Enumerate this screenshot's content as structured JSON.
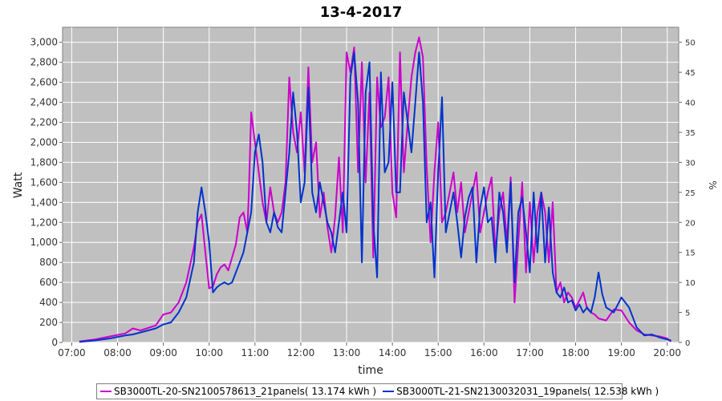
{
  "chart_data": {
    "type": "line",
    "title": "13-4-2017",
    "xlabel": "time",
    "ylabel": "Watt",
    "y2label": "%",
    "x_ticks": [
      "07:00",
      "08:00",
      "09:00",
      "10:00",
      "11:00",
      "12:00",
      "13:00",
      "14:00",
      "15:00",
      "16:00",
      "17:00",
      "18:00",
      "19:00",
      "20:00"
    ],
    "y_ticks": [
      "0",
      "200",
      "400",
      "600",
      "800",
      "1,000",
      "1,200",
      "1,400",
      "1,600",
      "1,800",
      "2,000",
      "2,200",
      "2,400",
      "2,600",
      "2,800",
      "3,000"
    ],
    "y2_ticks": [
      "0",
      "5",
      "10",
      "15",
      "20",
      "25",
      "30",
      "35",
      "40",
      "45",
      "50"
    ],
    "xlim_hours": [
      6.8,
      20.25
    ],
    "ylim": [
      0,
      3150
    ],
    "y2lim": [
      0,
      52.5
    ],
    "grid": true,
    "legend_position": "bottom",
    "series": [
      {
        "name": "SB3000TL-20-SN2100578613_21panels( 13.174 kWh )",
        "color": "#cc00cc",
        "points": [
          [
            "07:10",
            10
          ],
          [
            "07:30",
            30
          ],
          [
            "07:50",
            60
          ],
          [
            "08:10",
            90
          ],
          [
            "08:20",
            140
          ],
          [
            "08:30",
            120
          ],
          [
            "08:50",
            170
          ],
          [
            "09:00",
            280
          ],
          [
            "09:10",
            300
          ],
          [
            "09:20",
            400
          ],
          [
            "09:30",
            600
          ],
          [
            "09:40",
            950
          ],
          [
            "09:45",
            1200
          ],
          [
            "09:50",
            1280
          ],
          [
            "09:55",
            900
          ],
          [
            "10:00",
            540
          ],
          [
            "10:05",
            560
          ],
          [
            "10:10",
            680
          ],
          [
            "10:15",
            750
          ],
          [
            "10:20",
            780
          ],
          [
            "10:25",
            720
          ],
          [
            "10:30",
            850
          ],
          [
            "10:35",
            980
          ],
          [
            "10:40",
            1250
          ],
          [
            "10:45",
            1300
          ],
          [
            "10:50",
            1100
          ],
          [
            "10:52",
            1500
          ],
          [
            "10:55",
            2300
          ],
          [
            "11:00",
            2000
          ],
          [
            "11:05",
            1700
          ],
          [
            "11:10",
            1400
          ],
          [
            "11:15",
            1200
          ],
          [
            "11:20",
            1550
          ],
          [
            "11:25",
            1300
          ],
          [
            "11:30",
            1200
          ],
          [
            "11:35",
            1300
          ],
          [
            "11:40",
            1600
          ],
          [
            "11:45",
            2650
          ],
          [
            "11:50",
            2100
          ],
          [
            "11:55",
            1900
          ],
          [
            "12:00",
            2300
          ],
          [
            "12:05",
            1700
          ],
          [
            "12:10",
            2750
          ],
          [
            "12:15",
            1800
          ],
          [
            "12:20",
            2000
          ],
          [
            "12:25",
            1250
          ],
          [
            "12:30",
            1500
          ],
          [
            "12:35",
            1150
          ],
          [
            "12:40",
            900
          ],
          [
            "12:45",
            1250
          ],
          [
            "12:50",
            1850
          ],
          [
            "12:55",
            1100
          ],
          [
            "13:00",
            2900
          ],
          [
            "13:05",
            2700
          ],
          [
            "13:10",
            2950
          ],
          [
            "13:15",
            1700
          ],
          [
            "13:20",
            2800
          ],
          [
            "13:25",
            1600
          ],
          [
            "13:30",
            2500
          ],
          [
            "13:35",
            850
          ],
          [
            "13:40",
            2650
          ],
          [
            "13:45",
            2150
          ],
          [
            "13:50",
            2250
          ],
          [
            "13:55",
            2650
          ],
          [
            "14:00",
            1500
          ],
          [
            "14:05",
            1250
          ],
          [
            "14:10",
            2900
          ],
          [
            "14:15",
            1700
          ],
          [
            "14:20",
            2200
          ],
          [
            "14:25",
            2650
          ],
          [
            "14:30",
            2900
          ],
          [
            "14:35",
            3050
          ],
          [
            "14:40",
            2850
          ],
          [
            "14:45",
            1750
          ],
          [
            "14:50",
            1000
          ],
          [
            "14:55",
            1700
          ],
          [
            "15:00",
            2200
          ],
          [
            "15:05",
            1200
          ],
          [
            "15:10",
            1300
          ],
          [
            "15:15",
            1500
          ],
          [
            "15:20",
            1700
          ],
          [
            "15:25",
            1300
          ],
          [
            "15:30",
            1600
          ],
          [
            "15:35",
            1100
          ],
          [
            "15:40",
            1300
          ],
          [
            "15:45",
            1500
          ],
          [
            "15:50",
            1700
          ],
          [
            "15:55",
            1100
          ],
          [
            "16:00",
            1300
          ],
          [
            "16:05",
            1500
          ],
          [
            "16:10",
            1650
          ],
          [
            "16:15",
            900
          ],
          [
            "16:20",
            1300
          ],
          [
            "16:25",
            1500
          ],
          [
            "16:30",
            1000
          ],
          [
            "16:35",
            1650
          ],
          [
            "16:40",
            400
          ],
          [
            "16:45",
            1000
          ],
          [
            "16:50",
            1600
          ],
          [
            "16:55",
            700
          ],
          [
            "17:00",
            1400
          ],
          [
            "17:05",
            800
          ],
          [
            "17:10",
            1300
          ],
          [
            "17:15",
            1500
          ],
          [
            "17:20",
            1300
          ],
          [
            "17:25",
            800
          ],
          [
            "17:30",
            1400
          ],
          [
            "17:35",
            500
          ],
          [
            "17:40",
            600
          ],
          [
            "17:45",
            400
          ],
          [
            "17:50",
            500
          ],
          [
            "17:55",
            450
          ],
          [
            "18:00",
            350
          ],
          [
            "18:05",
            420
          ],
          [
            "18:10",
            500
          ],
          [
            "18:15",
            340
          ],
          [
            "18:20",
            300
          ],
          [
            "18:25",
            280
          ],
          [
            "18:30",
            240
          ],
          [
            "18:40",
            220
          ],
          [
            "18:50",
            330
          ],
          [
            "19:00",
            320
          ],
          [
            "19:10",
            200
          ],
          [
            "19:20",
            120
          ],
          [
            "19:30",
            80
          ],
          [
            "19:40",
            70
          ],
          [
            "19:50",
            60
          ],
          [
            "20:00",
            40
          ],
          [
            "20:05",
            10
          ]
        ]
      },
      {
        "name": "SB3000TL-21-SN2130032031_19panels( 12.538 kWh )",
        "color": "#0033cc",
        "points": [
          [
            "07:10",
            5
          ],
          [
            "07:30",
            20
          ],
          [
            "07:50",
            40
          ],
          [
            "08:10",
            70
          ],
          [
            "08:20",
            80
          ],
          [
            "08:30",
            100
          ],
          [
            "08:50",
            140
          ],
          [
            "09:00",
            180
          ],
          [
            "09:10",
            200
          ],
          [
            "09:20",
            300
          ],
          [
            "09:30",
            450
          ],
          [
            "09:40",
            800
          ],
          [
            "09:45",
            1300
          ],
          [
            "09:50",
            1550
          ],
          [
            "09:55",
            1300
          ],
          [
            "10:00",
            1000
          ],
          [
            "10:05",
            500
          ],
          [
            "10:10",
            550
          ],
          [
            "10:15",
            580
          ],
          [
            "10:20",
            600
          ],
          [
            "10:25",
            580
          ],
          [
            "10:30",
            600
          ],
          [
            "10:35",
            700
          ],
          [
            "10:40",
            800
          ],
          [
            "10:45",
            900
          ],
          [
            "10:50",
            1100
          ],
          [
            "10:55",
            1300
          ],
          [
            "11:00",
            1900
          ],
          [
            "11:05",
            2080
          ],
          [
            "11:10",
            1800
          ],
          [
            "11:15",
            1200
          ],
          [
            "11:20",
            1100
          ],
          [
            "11:25",
            1300
          ],
          [
            "11:30",
            1150
          ],
          [
            "11:35",
            1100
          ],
          [
            "11:40",
            1500
          ],
          [
            "11:45",
            1900
          ],
          [
            "11:50",
            2500
          ],
          [
            "11:55",
            2100
          ],
          [
            "12:00",
            1400
          ],
          [
            "12:05",
            1600
          ],
          [
            "12:10",
            2550
          ],
          [
            "12:15",
            1500
          ],
          [
            "12:20",
            1300
          ],
          [
            "12:25",
            1600
          ],
          [
            "12:30",
            1400
          ],
          [
            "12:35",
            1200
          ],
          [
            "12:40",
            1100
          ],
          [
            "12:45",
            900
          ],
          [
            "12:50",
            1200
          ],
          [
            "12:55",
            1500
          ],
          [
            "13:00",
            1100
          ],
          [
            "13:05",
            2650
          ],
          [
            "13:10",
            2900
          ],
          [
            "13:15",
            2400
          ],
          [
            "13:20",
            800
          ],
          [
            "13:25",
            2500
          ],
          [
            "13:30",
            2800
          ],
          [
            "13:35",
            1200
          ],
          [
            "13:40",
            650
          ],
          [
            "13:45",
            2700
          ],
          [
            "13:50",
            1700
          ],
          [
            "13:55",
            1800
          ],
          [
            "14:00",
            2600
          ],
          [
            "14:05",
            1500
          ],
          [
            "14:10",
            1500
          ],
          [
            "14:15",
            2500
          ],
          [
            "14:20",
            2200
          ],
          [
            "14:25",
            1900
          ],
          [
            "14:30",
            2400
          ],
          [
            "14:35",
            2900
          ],
          [
            "14:40",
            2400
          ],
          [
            "14:45",
            1200
          ],
          [
            "14:50",
            1400
          ],
          [
            "14:55",
            650
          ],
          [
            "15:00",
            1700
          ],
          [
            "15:05",
            2450
          ],
          [
            "15:10",
            1100
          ],
          [
            "15:15",
            1300
          ],
          [
            "15:20",
            1500
          ],
          [
            "15:25",
            1200
          ],
          [
            "15:30",
            850
          ],
          [
            "15:35",
            1250
          ],
          [
            "15:40",
            1450
          ],
          [
            "15:45",
            1550
          ],
          [
            "15:50",
            800
          ],
          [
            "15:55",
            1350
          ],
          [
            "16:00",
            1550
          ],
          [
            "16:05",
            1200
          ],
          [
            "16:10",
            1250
          ],
          [
            "16:15",
            800
          ],
          [
            "16:20",
            1500
          ],
          [
            "16:25",
            1300
          ],
          [
            "16:30",
            900
          ],
          [
            "16:35",
            1600
          ],
          [
            "16:40",
            600
          ],
          [
            "16:45",
            1300
          ],
          [
            "16:50",
            1450
          ],
          [
            "16:55",
            1100
          ],
          [
            "17:00",
            700
          ],
          [
            "17:05",
            1500
          ],
          [
            "17:10",
            900
          ],
          [
            "17:15",
            1500
          ],
          [
            "17:20",
            800
          ],
          [
            "17:25",
            1350
          ],
          [
            "17:30",
            700
          ],
          [
            "17:35",
            500
          ],
          [
            "17:40",
            450
          ],
          [
            "17:45",
            550
          ],
          [
            "17:50",
            400
          ],
          [
            "17:55",
            420
          ],
          [
            "18:00",
            320
          ],
          [
            "18:05",
            380
          ],
          [
            "18:10",
            300
          ],
          [
            "18:15",
            350
          ],
          [
            "18:20",
            300
          ],
          [
            "18:25",
            450
          ],
          [
            "18:30",
            700
          ],
          [
            "18:35",
            480
          ],
          [
            "18:40",
            350
          ],
          [
            "18:50",
            300
          ],
          [
            "19:00",
            450
          ],
          [
            "19:10",
            350
          ],
          [
            "19:20",
            150
          ],
          [
            "19:30",
            70
          ],
          [
            "19:40",
            80
          ],
          [
            "19:50",
            50
          ],
          [
            "20:00",
            30
          ],
          [
            "20:05",
            20
          ]
        ]
      }
    ]
  }
}
